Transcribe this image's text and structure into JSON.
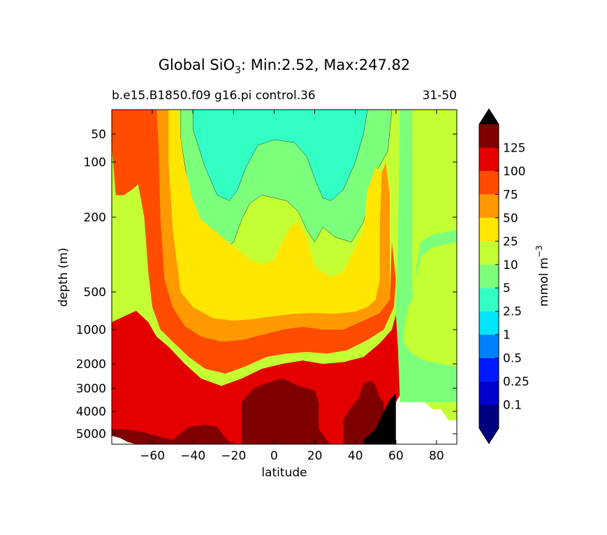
{
  "chart_data": {
    "type": "heatmap",
    "title_main": "Global SiO",
    "title_subscript": "3",
    "title_stats": ": Min:2.52, Max:247.82",
    "subtitle_left": "b.e15.B1850.f09 g16.pi control.36",
    "subtitle_right": "31-50",
    "xlabel": "latitude",
    "ylabel": "depth (m)",
    "xlim": [
      -80,
      90
    ],
    "x_ticks": [
      -60,
      -40,
      -20,
      0,
      20,
      40,
      60,
      80
    ],
    "x_tick_labels": [
      "−60",
      "−40",
      "−20",
      "0",
      "20",
      "40",
      "60",
      "80"
    ],
    "ylim": [
      0,
      5500
    ],
    "y_ticks": [
      50,
      100,
      200,
      500,
      1000,
      2000,
      3000,
      4000,
      5000
    ],
    "y_tick_labels": [
      "50",
      "100",
      "200",
      "500",
      "1000",
      "2000",
      "3000",
      "4000",
      "5000"
    ],
    "colorbar": {
      "label_main": "mmol m",
      "label_exponent": "−3",
      "levels": [
        0.1,
        0.25,
        0.5,
        1,
        2.5,
        5,
        10,
        25,
        50,
        75,
        100,
        125
      ],
      "level_labels": [
        "0.1",
        "0.25",
        "0.5",
        "1",
        "2.5",
        "5",
        "10",
        "25",
        "50",
        "75",
        "100",
        "125"
      ],
      "colors": [
        "#00007f",
        "#0000cc",
        "#0019ff",
        "#0080ff",
        "#00e5f8",
        "#33ffc4",
        "#7cff7a",
        "#c4ff33",
        "#ffe600",
        "#ff9900",
        "#ff4c00",
        "#e50000",
        "#7f0000"
      ],
      "under_color": "#000080",
      "over_color": "#000000"
    },
    "regions": {
      "land_color": "#ffffff",
      "seafloor_color": "#000000"
    }
  }
}
